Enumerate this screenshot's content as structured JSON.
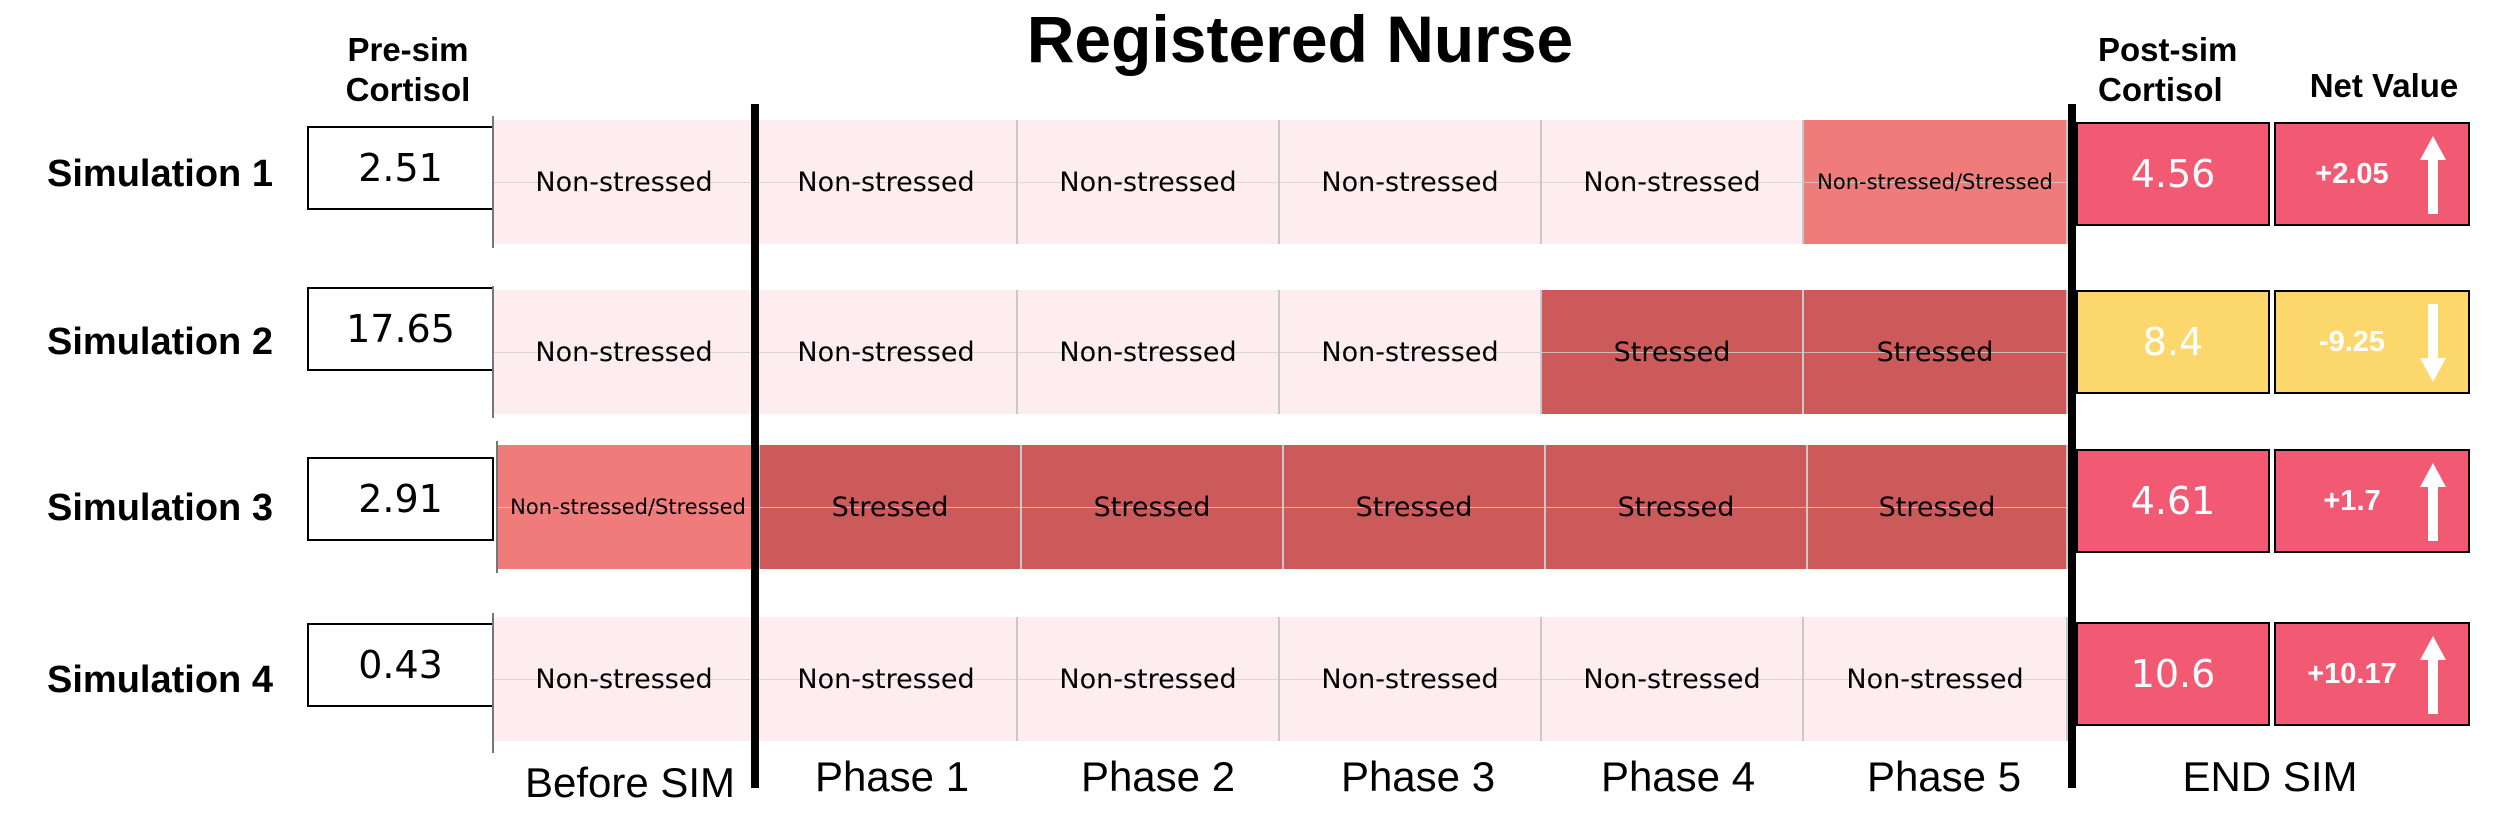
{
  "title": "Registered Nurse",
  "headers": {
    "pre_sim": [
      "Pre-sim",
      "Cortisol"
    ],
    "post_sim": [
      "Post-sim",
      "Cortisol"
    ],
    "net_value": "Net Value"
  },
  "phases": [
    "Before SIM",
    "Phase 1",
    "Phase 2",
    "Phase 3",
    "Phase 4",
    "Phase 5",
    "END SIM"
  ],
  "colors": {
    "non_stressed": "#fdedf1",
    "mixed": "#ef7c7b",
    "stressed": "#cc5a5a",
    "post_red": "#f25a73",
    "post_yellow": "#fcd76c"
  },
  "simulations": [
    {
      "label": "Simulation 1",
      "pre": "2.51",
      "states": [
        "Non-stressed",
        "Non-stressed",
        "Non-stressed",
        "Non-stressed",
        "Non-stressed",
        "Non-stressed/Stressed"
      ],
      "post": "4.56",
      "net": "+2.05",
      "direction": "up",
      "post_color": "red"
    },
    {
      "label": "Simulation 2",
      "pre": "17.65",
      "states": [
        "Non-stressed",
        "Non-stressed",
        "Non-stressed",
        "Non-stressed",
        "Stressed",
        "Stressed"
      ],
      "post": "8.4",
      "net": "-9.25",
      "direction": "down",
      "post_color": "yellow"
    },
    {
      "label": "Simulation 3",
      "pre": "2.91",
      "states": [
        "Non-stressed/Stressed",
        "Stressed",
        "Stressed",
        "Stressed",
        "Stressed",
        "Stressed"
      ],
      "post": "4.61",
      "net": "+1.7",
      "direction": "up",
      "post_color": "red"
    },
    {
      "label": "Simulation 4",
      "pre": "0.43",
      "states": [
        "Non-stressed",
        "Non-stressed",
        "Non-stressed",
        "Non-stressed",
        "Non-stressed",
        "Non-stressed"
      ],
      "post": "10.6",
      "net": "+10.17",
      "direction": "up",
      "post_color": "red"
    }
  ]
}
